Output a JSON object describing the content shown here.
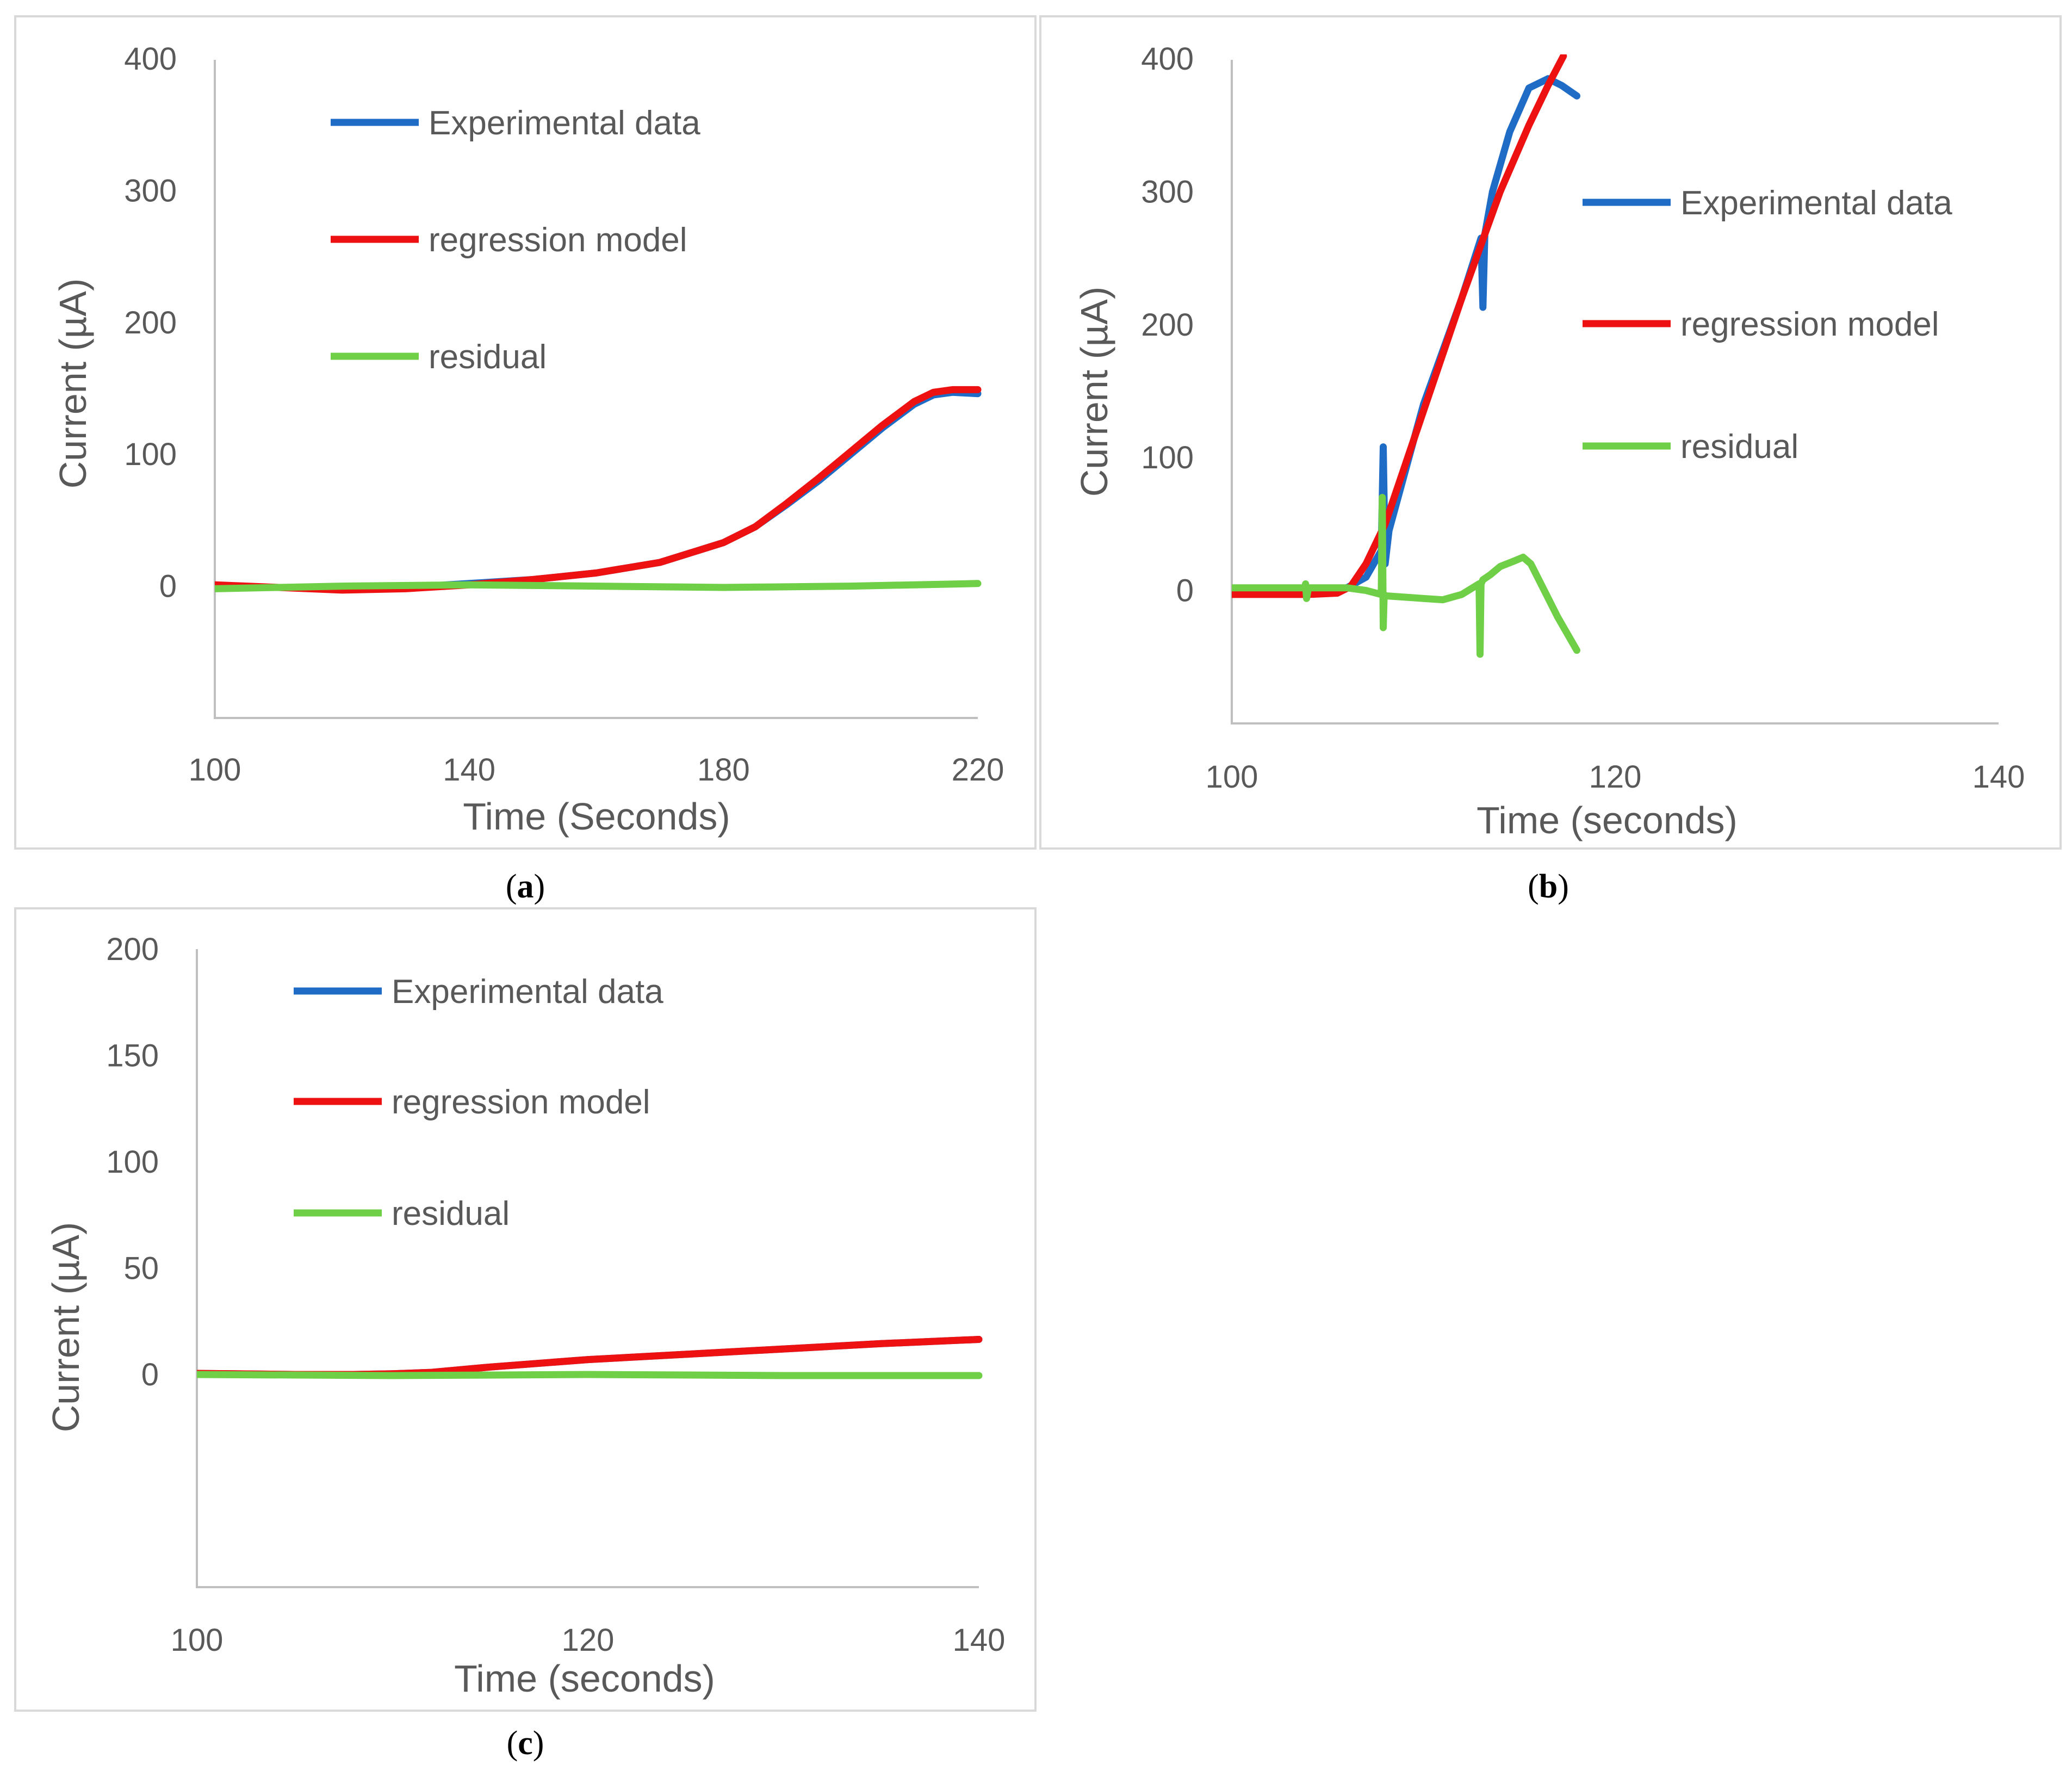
{
  "colors": {
    "experimental": "#1f6cc7",
    "model": "#ee1111",
    "residual": "#6fcf47"
  },
  "chart_data": [
    {
      "type": "line",
      "caption_letter": "a",
      "xlabel": "Time (Seconds)",
      "ylabel": "Current (µA)",
      "xlim": [
        100,
        220
      ],
      "ylim": [
        -100,
        400
      ],
      "xticks": [
        100,
        140,
        180,
        220
      ],
      "yticks": [
        0,
        100,
        200,
        300,
        400
      ],
      "legend_position": "top-left",
      "series": [
        {
          "name": "Experimental data",
          "color_key": "experimental",
          "x": [
            100,
            110,
            120,
            130,
            140,
            150,
            160,
            170,
            180,
            185,
            190,
            195,
            200,
            205,
            210,
            213,
            216,
            220
          ],
          "y": [
            0,
            -1,
            -2,
            -1,
            2,
            5,
            10,
            18,
            33,
            45,
            62,
            80,
            100,
            120,
            138,
            145,
            147,
            146
          ]
        },
        {
          "name": "regression model",
          "color_key": "model",
          "x": [
            100,
            110,
            120,
            130,
            140,
            150,
            160,
            170,
            180,
            185,
            190,
            195,
            200,
            205,
            210,
            213,
            216,
            220
          ],
          "y": [
            1,
            -1,
            -3,
            -2,
            1,
            5,
            10,
            18,
            33,
            45,
            63,
            82,
            102,
            122,
            140,
            147,
            149,
            149
          ]
        },
        {
          "name": "residual",
          "color_key": "residual",
          "x": [
            100,
            120,
            140,
            160,
            180,
            200,
            220
          ],
          "y": [
            -2,
            0,
            1,
            0,
            -1,
            0,
            2
          ]
        }
      ]
    },
    {
      "type": "line",
      "caption_letter": "b",
      "xlabel": "Time (seconds)",
      "ylabel": "Current (µA)",
      "xlim": [
        100,
        140
      ],
      "ylim": [
        -100,
        400
      ],
      "xticks": [
        100,
        120,
        140
      ],
      "yticks": [
        0,
        100,
        200,
        300,
        400
      ],
      "legend_position": "right",
      "series": [
        {
          "name": "Experimental data",
          "color_key": "experimental",
          "x": [
            100,
            104,
            105.5,
            106,
            107,
            107.8,
            107.9,
            108.0,
            108.2,
            110,
            112,
            113,
            113.1,
            113.2,
            113.6,
            114.5,
            115.5,
            116.5,
            117.2,
            118
          ],
          "y": [
            0,
            0,
            0,
            2,
            10,
            30,
            108,
            20,
            45,
            140,
            220,
            265,
            213,
            268,
            300,
            345,
            378,
            385,
            380,
            372
          ]
        },
        {
          "name": "regression model",
          "color_key": "model",
          "x": [
            100,
            104,
            105.5,
            106.2,
            107,
            108,
            110,
            112,
            114,
            115.5,
            116.5,
            117.3
          ],
          "y": [
            -3,
            -3,
            -2,
            3,
            20,
            50,
            135,
            220,
            300,
            350,
            380,
            402
          ]
        },
        {
          "name": "residual",
          "color_key": "residual",
          "x": [
            100,
            103.8,
            103.85,
            103.9,
            104,
            106,
            107,
            107.8,
            107.85,
            107.9,
            107.95,
            108,
            109,
            110,
            111,
            112,
            112.9,
            112.95,
            113,
            113.1,
            113.5,
            114,
            114.7,
            115.2,
            115.6,
            116.3,
            117,
            118
          ],
          "y": [
            2,
            2,
            5,
            -6,
            2,
            2,
            0,
            -3,
            70,
            -28,
            -3,
            -4,
            -5,
            -6,
            -7,
            -3,
            5,
            -48,
            5,
            8,
            12,
            18,
            22,
            25,
            20,
            0,
            -20,
            -45
          ]
        }
      ]
    },
    {
      "type": "line",
      "caption_letter": "c",
      "xlabel": "Time (seconds)",
      "ylabel": "Current (µA)",
      "xlim": [
        100,
        140
      ],
      "ylim": [
        -100,
        200
      ],
      "xticks": [
        100,
        120,
        140
      ],
      "yticks": [
        0,
        50,
        100,
        150,
        200
      ],
      "legend_position": "top-left",
      "series": [
        {
          "name": "Experimental data",
          "color_key": "experimental",
          "x": [
            100,
            105,
            108,
            110,
            112,
            115,
            120,
            125,
            130,
            135,
            140
          ],
          "y": [
            0.5,
            0,
            0,
            0.3,
            1,
            3.5,
            7,
            9.5,
            12,
            14.5,
            16.5
          ]
        },
        {
          "name": "regression model",
          "color_key": "model",
          "x": [
            100,
            105,
            108,
            110,
            112,
            115,
            120,
            125,
            130,
            135,
            140
          ],
          "y": [
            0.5,
            0,
            0,
            0.3,
            1,
            3.5,
            7,
            9.5,
            12,
            14.5,
            16.5
          ]
        },
        {
          "name": "residual",
          "color_key": "residual",
          "x": [
            100,
            110,
            120,
            130,
            140
          ],
          "y": [
            0,
            -0.5,
            0,
            -0.5,
            -0.5
          ]
        }
      ]
    }
  ]
}
